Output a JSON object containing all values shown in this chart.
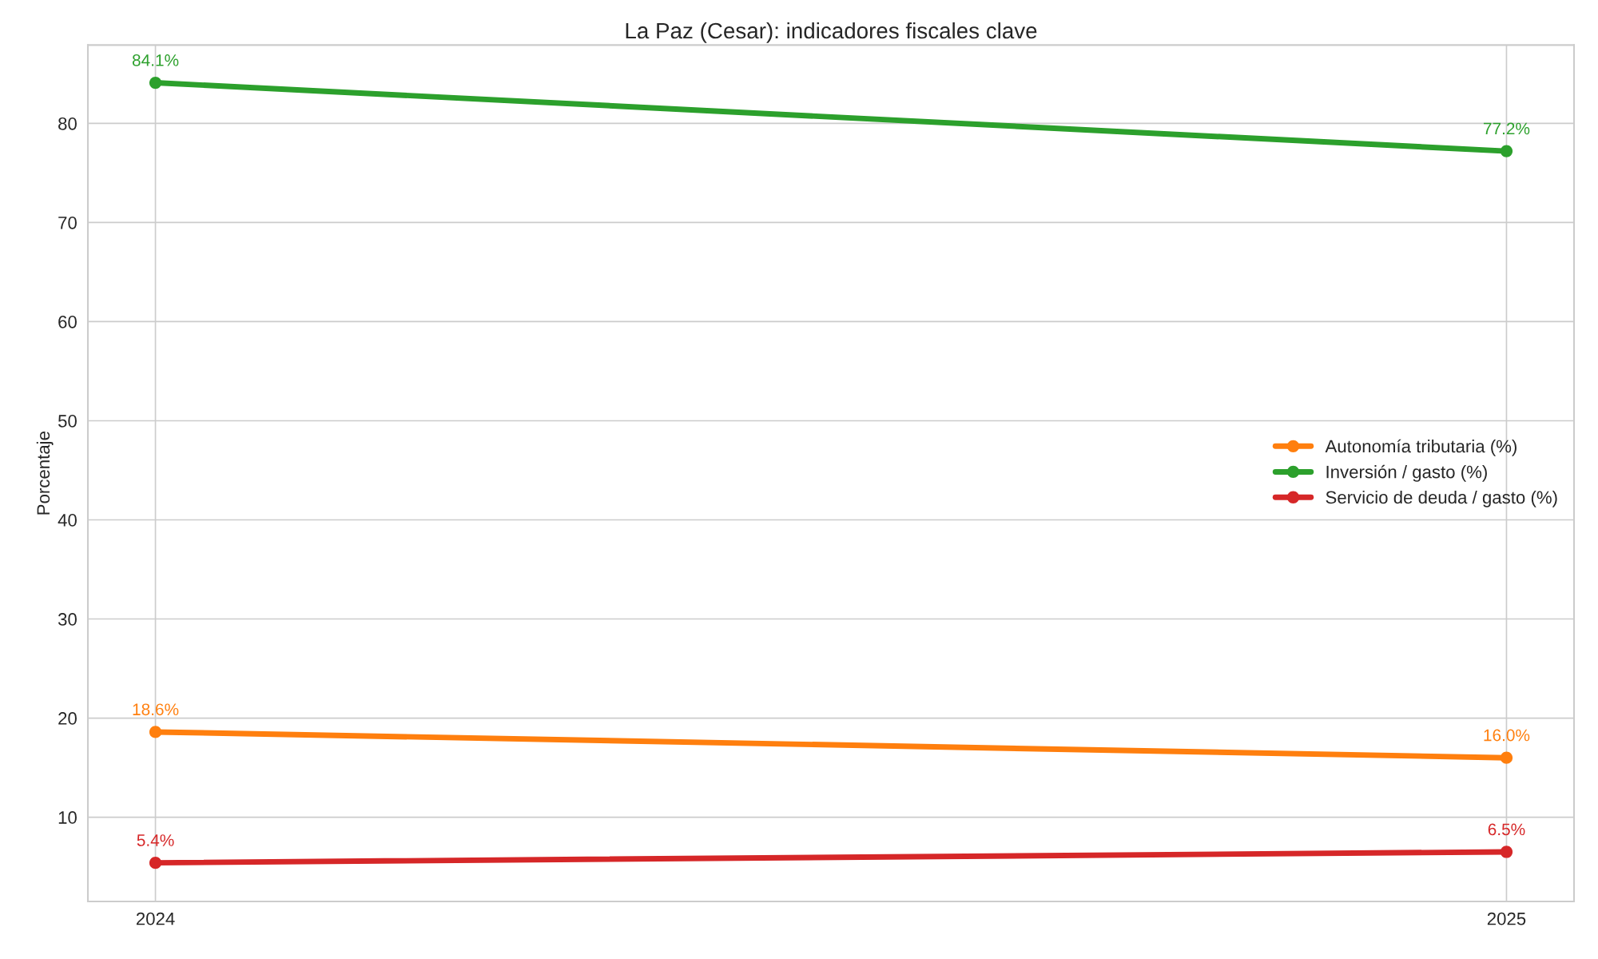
{
  "chart_data": {
    "type": "line",
    "title": "La Paz (Cesar): indicadores fiscales clave",
    "ylabel": "Porcentaje",
    "x": [
      2024,
      2025
    ],
    "series": [
      {
        "name": "Autonomía tributaria (%)",
        "color": "#ff7f0e",
        "values": [
          18.6,
          16.0
        ],
        "value_labels": [
          "18.6%",
          "16.0%"
        ]
      },
      {
        "name": "Inversión / gasto (%)",
        "color": "#2ca02c",
        "values": [
          84.1,
          77.2
        ],
        "value_labels": [
          "84.1%",
          "77.2%"
        ]
      },
      {
        "name": "Servicio de deuda / gasto (%)",
        "color": "#d62728",
        "values": [
          5.4,
          6.5
        ],
        "value_labels": [
          "5.4%",
          "6.5%"
        ]
      }
    ],
    "xlim": [
      2023.95,
      2025.05
    ],
    "xticks": [
      2024,
      2025
    ],
    "ylim": [
      1.5,
      87.9
    ],
    "yticks": [
      10,
      20,
      30,
      40,
      50,
      60,
      70,
      80
    ],
    "grid": true,
    "legend": "right",
    "marker": "circle",
    "line_style": "solid"
  }
}
